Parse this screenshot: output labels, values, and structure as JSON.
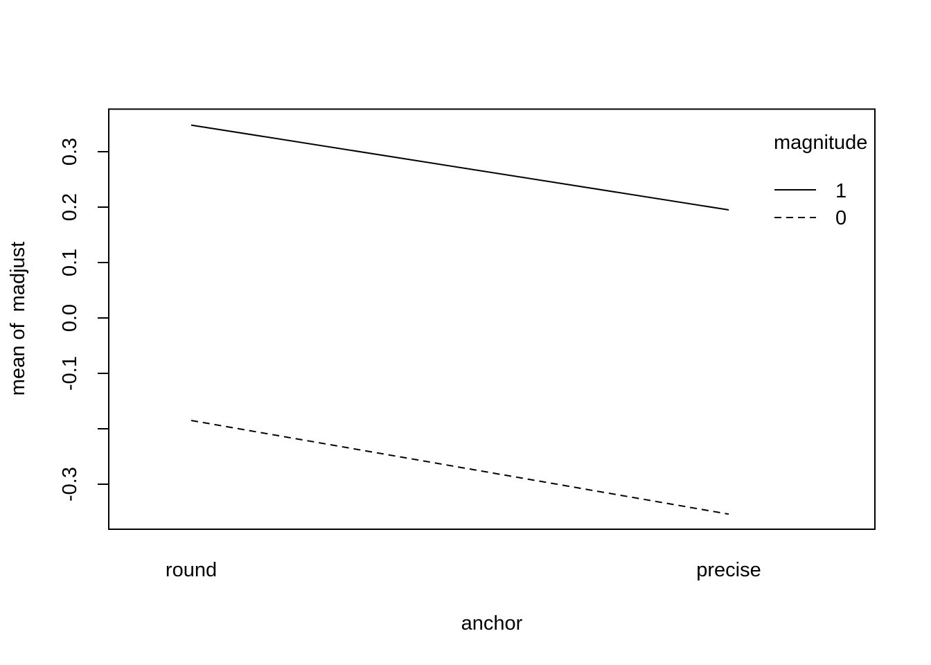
{
  "chart_data": {
    "type": "line",
    "title": "",
    "xlabel": "anchor",
    "ylabel": "mean of  madjust",
    "categories": [
      "round",
      "precise"
    ],
    "ylim": [
      -0.38,
      0.38
    ],
    "yticks": [
      0.3,
      0.2,
      0.1,
      0.0,
      -0.2,
      -0.3
    ],
    "ytick_labels": [
      "0.3",
      "0.2",
      "0.1",
      "0.0",
      "",
      "-0.3"
    ],
    "ytick_label_minus01": "-0.1",
    "legend": {
      "title": "magnitude",
      "placement": "top-right",
      "entries": [
        "1",
        "0"
      ]
    },
    "series": [
      {
        "name": "1",
        "line_style": "solid",
        "values": [
          0.348,
          0.195
        ]
      },
      {
        "name": "0",
        "line_style": "dashed",
        "values": [
          -0.185,
          -0.354
        ]
      }
    ],
    "colors": {
      "line": "#000000",
      "frame": "#000000",
      "background": "#ffffff"
    }
  }
}
